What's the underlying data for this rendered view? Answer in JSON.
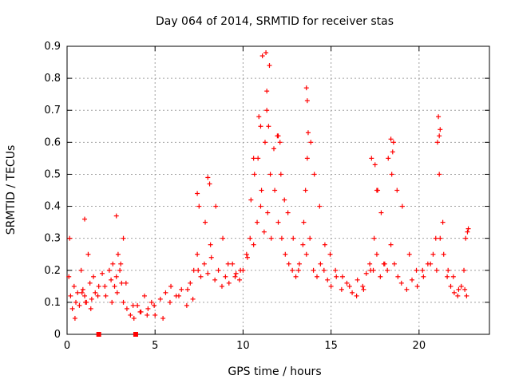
{
  "chart_data": {
    "type": "scatter",
    "title": "Day 064 of 2014, SRMTID for receiver stas",
    "xlabel": "GPS time / hours",
    "ylabel": "SRMTID / TECUs",
    "xlim": [
      0,
      24
    ],
    "ylim": [
      0,
      0.9
    ],
    "xticks": [
      0,
      5,
      10,
      15,
      20
    ],
    "yticks": [
      0,
      0.1,
      0.2,
      0.3,
      0.4,
      0.5,
      0.6,
      0.7,
      0.8,
      0.9
    ],
    "grid": true,
    "marker": "+",
    "color": "#ff0000",
    "series": [
      {
        "name": "SRMTID",
        "x": [
          0.1,
          0.2,
          0.3,
          0.4,
          0.5,
          0.6,
          0.7,
          0.8,
          0.9,
          1.0,
          1.1,
          1.2,
          1.3,
          1.4,
          1.5,
          1.6,
          1.8,
          2.0,
          2.2,
          2.4,
          2.5,
          2.6,
          2.7,
          2.8,
          2.9,
          3.0,
          3.1,
          3.2,
          3.4,
          3.6,
          3.8,
          4.0,
          4.2,
          4.4,
          4.6,
          4.8,
          5.0,
          5.3,
          5.6,
          5.9,
          6.2,
          6.5,
          6.8,
          7.0,
          7.2,
          7.4,
          7.6,
          7.8,
          8.0,
          8.2,
          8.4,
          8.6,
          8.8,
          9.0,
          9.2,
          9.4,
          9.6,
          9.8,
          10.0,
          10.2,
          10.4,
          10.6,
          10.8,
          11.0,
          11.2,
          11.4,
          11.6,
          11.8,
          12.0,
          12.2,
          12.4,
          12.6,
          12.8,
          13.0,
          13.2,
          13.4,
          13.6,
          13.8,
          14.0,
          14.2,
          14.4,
          14.6,
          14.8,
          15.0,
          15.3,
          15.6,
          15.9,
          16.2,
          16.5,
          16.8,
          17.0,
          17.2,
          17.4,
          17.6,
          17.8,
          18.0,
          18.2,
          18.4,
          18.6,
          18.8,
          19.0,
          19.3,
          19.6,
          19.9,
          20.2,
          20.5,
          20.8,
          21.0,
          21.2,
          21.4,
          21.6,
          21.8,
          22.0,
          22.2,
          22.4,
          22.6,
          22.7,
          0.15,
          0.45,
          0.85,
          1.05,
          1.35,
          1.75,
          2.15,
          2.55,
          2.85,
          3.05,
          3.35,
          3.75,
          4.15,
          4.55,
          4.95,
          5.45,
          5.85,
          6.35,
          6.85,
          7.15,
          7.45,
          7.85,
          8.15,
          8.45,
          8.85,
          9.15,
          9.55,
          9.85,
          10.25,
          10.45,
          10.65,
          10.85,
          11.05,
          11.25,
          11.35,
          11.45,
          11.55,
          11.75,
          11.95,
          12.15,
          12.35,
          12.55,
          12.85,
          13.15,
          13.45,
          13.55,
          13.65,
          13.85,
          14.05,
          14.35,
          14.65,
          14.95,
          15.25,
          15.65,
          16.05,
          16.45,
          16.85,
          17.25,
          17.45,
          17.65,
          17.85,
          18.05,
          18.25,
          18.45,
          18.55,
          18.75,
          19.05,
          19.45,
          19.85,
          20.25,
          20.65,
          20.95,
          21.05,
          21.15,
          21.35,
          21.65,
          21.95,
          22.25,
          22.55,
          22.65,
          22.75,
          22.8,
          11.1,
          11.3,
          11.35,
          11.5,
          13.6,
          13.65,
          13.7,
          18.4,
          18.5,
          21.1,
          21.2,
          21.15,
          10.6,
          10.9,
          11.0,
          12.0,
          12.1,
          8.0,
          8.1,
          7.4,
          7.5,
          17.3,
          17.5,
          17.6,
          1.0,
          2.8,
          3.2
        ],
        "y": [
          0.18,
          0.12,
          0.08,
          0.15,
          0.1,
          0.13,
          0.09,
          0.2,
          0.14,
          0.12,
          0.1,
          0.25,
          0.16,
          0.11,
          0.18,
          0.13,
          0.15,
          0.19,
          0.12,
          0.2,
          0.17,
          0.22,
          0.15,
          0.18,
          0.25,
          0.2,
          0.16,
          0.1,
          0.08,
          0.06,
          0.05,
          0.09,
          0.07,
          0.12,
          0.08,
          0.1,
          0.06,
          0.11,
          0.13,
          0.15,
          0.12,
          0.14,
          0.09,
          0.16,
          0.2,
          0.25,
          0.18,
          0.22,
          0.19,
          0.24,
          0.17,
          0.2,
          0.15,
          0.18,
          0.16,
          0.22,
          0.19,
          0.17,
          0.2,
          0.25,
          0.3,
          0.28,
          0.35,
          0.4,
          0.32,
          0.38,
          0.3,
          0.45,
          0.35,
          0.3,
          0.25,
          0.22,
          0.2,
          0.18,
          0.22,
          0.28,
          0.25,
          0.3,
          0.2,
          0.18,
          0.22,
          0.2,
          0.17,
          0.15,
          0.18,
          0.14,
          0.16,
          0.13,
          0.17,
          0.15,
          0.19,
          0.22,
          0.2,
          0.25,
          0.18,
          0.22,
          0.2,
          0.28,
          0.22,
          0.18,
          0.16,
          0.14,
          0.17,
          0.15,
          0.2,
          0.22,
          0.25,
          0.2,
          0.3,
          0.25,
          0.18,
          0.15,
          0.13,
          0.12,
          0.15,
          0.14,
          0.12,
          0.3,
          0.05,
          0.13,
          0.1,
          0.08,
          0.12,
          0.15,
          0.1,
          0.13,
          0.22,
          0.16,
          0.09,
          0.07,
          0.06,
          0.09,
          0.05,
          0.1,
          0.12,
          0.14,
          0.11,
          0.2,
          0.35,
          0.28,
          0.4,
          0.3,
          0.22,
          0.18,
          0.2,
          0.24,
          0.42,
          0.5,
          0.55,
          0.45,
          0.6,
          0.7,
          0.65,
          0.5,
          0.58,
          0.62,
          0.5,
          0.42,
          0.38,
          0.3,
          0.2,
          0.35,
          0.45,
          0.55,
          0.6,
          0.5,
          0.4,
          0.28,
          0.25,
          0.2,
          0.18,
          0.15,
          0.12,
          0.14,
          0.2,
          0.3,
          0.45,
          0.38,
          0.22,
          0.55,
          0.5,
          0.6,
          0.45,
          0.4,
          0.25,
          0.2,
          0.18,
          0.22,
          0.3,
          0.6,
          0.5,
          0.35,
          0.2,
          0.18,
          0.14,
          0.2,
          0.3,
          0.32,
          0.33,
          0.87,
          0.88,
          0.76,
          0.84,
          0.77,
          0.73,
          0.63,
          0.61,
          0.57,
          0.68,
          0.64,
          0.62,
          0.55,
          0.68,
          0.65,
          0.62,
          0.6,
          0.49,
          0.47,
          0.44,
          0.4,
          0.55,
          0.53,
          0.45,
          0.36,
          0.37,
          0.3
        ],
        "markers": [
          {
            "x": 1.8,
            "y": 0.0
          },
          {
            "x": 3.9,
            "y": 0.0
          }
        ]
      }
    ]
  }
}
